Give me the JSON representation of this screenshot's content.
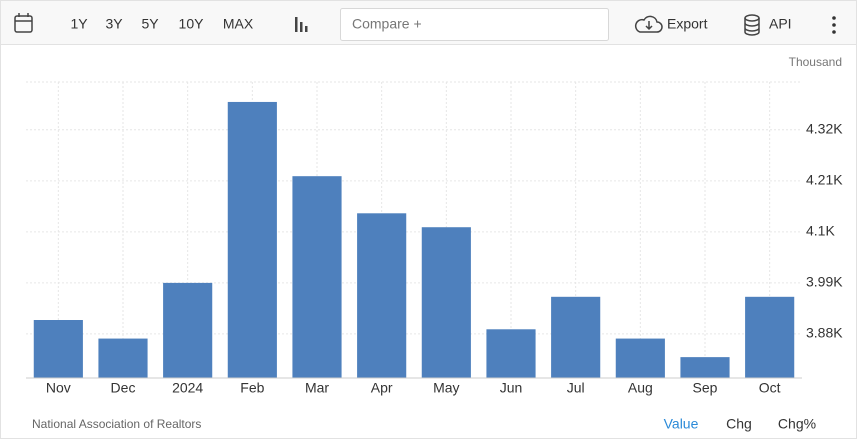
{
  "toolbar": {
    "ranges": [
      "1Y",
      "3Y",
      "5Y",
      "10Y",
      "MAX"
    ],
    "compare": "Compare +",
    "export": "Export",
    "api": "API"
  },
  "chart_data": {
    "type": "bar",
    "y_unit": "Thousand",
    "categories": [
      "Nov",
      "Dec",
      "2024",
      "Feb",
      "Mar",
      "Apr",
      "May",
      "Jun",
      "Jul",
      "Aug",
      "Sep",
      "Oct"
    ],
    "values": [
      3910,
      3870,
      3990,
      4380,
      4220,
      4140,
      4110,
      3890,
      3960,
      3870,
      3830,
      3960
    ],
    "color": "#4e80bd",
    "ylim": [
      3785,
      4423
    ],
    "yticks": [
      {
        "value": 3880,
        "label": "3.88K"
      },
      {
        "value": 3990,
        "label": "3.99K"
      },
      {
        "value": 4100,
        "label": "4.1K"
      },
      {
        "value": 4210,
        "label": "4.21K"
      },
      {
        "value": 4320,
        "label": "4.32K"
      }
    ],
    "grid": true,
    "source": "National Association of Realtors"
  },
  "footer": {
    "modes": [
      "Value",
      "Chg",
      "Chg%"
    ]
  }
}
